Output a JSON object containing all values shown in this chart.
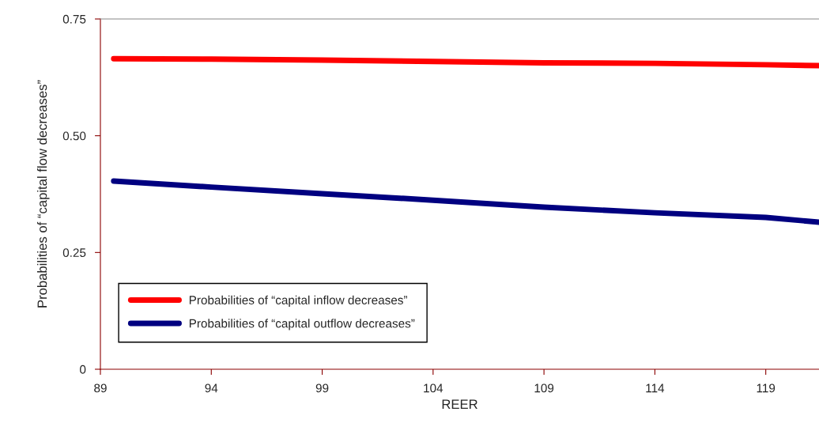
{
  "chart_data": {
    "type": "line",
    "xlabel": "REER",
    "ylabel": "Probabilities of “capital flow decreases”",
    "xlim": [
      89,
      121.4
    ],
    "xticks": [
      89,
      94,
      99,
      104,
      109,
      114,
      119
    ],
    "ylim": [
      0,
      0.75
    ],
    "yticks": [
      {
        "value": 0,
        "label": "0"
      },
      {
        "value": 0.25,
        "label": "0.25"
      },
      {
        "value": 0.5,
        "label": "0.50"
      },
      {
        "value": 0.75,
        "label": "0.75"
      }
    ],
    "grid": false,
    "legend": "bottom left",
    "series": [
      {
        "name": "Probabilities of “capital inflow decreases”",
        "color": "#ff0000",
        "x": [
          89.6,
          94,
          99,
          104,
          109,
          114,
          119,
          121.4
        ],
        "values": [
          0.665,
          0.664,
          0.662,
          0.659,
          0.656,
          0.655,
          0.652,
          0.65
        ]
      },
      {
        "name": "Probabilities of “capital outflow decreases”",
        "color": "#000080",
        "x": [
          89.6,
          94,
          99,
          104,
          109,
          114,
          119,
          121.4
        ],
        "values": [
          0.403,
          0.39,
          0.376,
          0.362,
          0.347,
          0.335,
          0.325,
          0.315
        ]
      }
    ]
  }
}
